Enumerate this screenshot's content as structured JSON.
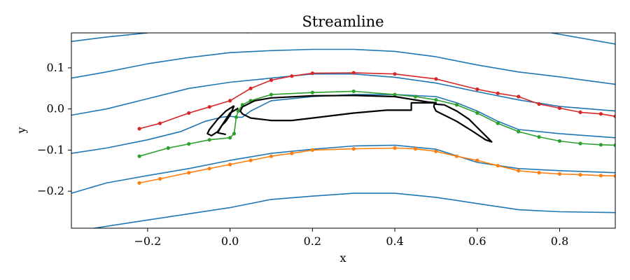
{
  "chart_data": {
    "type": "line",
    "title": "Streamline",
    "xlabel": "x",
    "ylabel": "y",
    "xlim": [
      -0.385,
      0.935
    ],
    "ylim": [
      -0.29,
      0.185
    ],
    "xticks": [
      -0.2,
      0.0,
      0.2,
      0.4,
      0.6,
      0.8
    ],
    "xtick_labels": [
      "−0.2",
      "0.0",
      "0.2",
      "0.4",
      "0.6",
      "0.8"
    ],
    "yticks": [
      -0.2,
      -0.1,
      0.0,
      0.1
    ],
    "ytick_labels": [
      "−0.2",
      "−0.1",
      "0.0",
      "0.1"
    ],
    "grid": false,
    "colors": {
      "streamline": "#1f77b4",
      "red": "#d62728",
      "green": "#2ca02c",
      "orange": "#ff7f0e",
      "body": "#000000"
    },
    "series": [
      {
        "color": "#1f77b4",
        "style": "line",
        "points": [
          [
            -0.385,
            0.164
          ],
          [
            -0.3,
            0.175
          ],
          [
            -0.2,
            0.185
          ]
        ]
      },
      {
        "color": "#1f77b4",
        "style": "line",
        "points": [
          [
            0.04,
            0.185
          ],
          [
            0.2,
            0.2
          ]
        ]
      },
      {
        "color": "#1f77b4",
        "style": "line",
        "points": [
          [
            0.78,
            0.185
          ],
          [
            0.935,
            0.158
          ]
        ]
      },
      {
        "color": "#1f77b4",
        "style": "line",
        "points": [
          [
            -0.385,
            0.075
          ],
          [
            -0.3,
            0.09
          ],
          [
            -0.2,
            0.11
          ],
          [
            -0.1,
            0.125
          ],
          [
            0.0,
            0.137
          ],
          [
            0.1,
            0.142
          ],
          [
            0.2,
            0.145
          ],
          [
            0.3,
            0.145
          ],
          [
            0.4,
            0.14
          ],
          [
            0.5,
            0.127
          ],
          [
            0.6,
            0.107
          ],
          [
            0.7,
            0.09
          ],
          [
            0.8,
            0.078
          ],
          [
            0.935,
            0.06
          ]
        ]
      },
      {
        "color": "#1f77b4",
        "style": "line",
        "points": [
          [
            -0.385,
            -0.015
          ],
          [
            -0.3,
            0.0
          ],
          [
            -0.2,
            0.025
          ],
          [
            -0.1,
            0.05
          ],
          [
            0.0,
            0.065
          ],
          [
            0.1,
            0.075
          ],
          [
            0.2,
            0.085
          ],
          [
            0.3,
            0.085
          ],
          [
            0.4,
            0.077
          ],
          [
            0.5,
            0.063
          ],
          [
            0.6,
            0.042
          ],
          [
            0.7,
            0.022
          ],
          [
            0.8,
            0.006
          ],
          [
            0.935,
            -0.005
          ]
        ]
      },
      {
        "color": "#1f77b4",
        "style": "line",
        "points": [
          [
            -0.385,
            -0.108
          ],
          [
            -0.3,
            -0.095
          ],
          [
            -0.2,
            -0.075
          ],
          [
            -0.12,
            -0.055
          ],
          [
            -0.06,
            -0.03
          ],
          [
            -0.02,
            -0.02
          ],
          [
            0.0,
            -0.018
          ],
          [
            0.02,
            -0.02
          ],
          [
            0.03,
            -0.02
          ],
          [
            0.05,
            -0.005
          ],
          [
            0.08,
            0.01
          ],
          [
            0.1,
            0.02
          ],
          [
            0.2,
            0.03
          ],
          [
            0.3,
            0.035
          ],
          [
            0.4,
            0.035
          ],
          [
            0.5,
            0.03
          ],
          [
            0.55,
            0.015
          ],
          [
            0.6,
            -0.005
          ],
          [
            0.65,
            -0.03
          ],
          [
            0.7,
            -0.05
          ],
          [
            0.8,
            -0.06
          ],
          [
            0.935,
            -0.07
          ]
        ]
      },
      {
        "color": "#1f77b4",
        "style": "line",
        "points": [
          [
            -0.385,
            -0.205
          ],
          [
            -0.3,
            -0.18
          ],
          [
            -0.2,
            -0.162
          ],
          [
            -0.1,
            -0.145
          ],
          [
            0.0,
            -0.125
          ],
          [
            0.1,
            -0.108
          ],
          [
            0.2,
            -0.098
          ],
          [
            0.3,
            -0.09
          ],
          [
            0.4,
            -0.088
          ],
          [
            0.5,
            -0.098
          ],
          [
            0.6,
            -0.13
          ],
          [
            0.7,
            -0.145
          ],
          [
            0.8,
            -0.15
          ],
          [
            0.935,
            -0.155
          ]
        ]
      },
      {
        "color": "#1f77b4",
        "style": "line",
        "points": [
          [
            -0.33,
            -0.29
          ],
          [
            -0.2,
            -0.27
          ],
          [
            -0.1,
            -0.255
          ],
          [
            0.0,
            -0.24
          ],
          [
            0.1,
            -0.22
          ],
          [
            0.2,
            -0.212
          ],
          [
            0.3,
            -0.205
          ],
          [
            0.4,
            -0.205
          ],
          [
            0.5,
            -0.215
          ],
          [
            0.6,
            -0.23
          ],
          [
            0.7,
            -0.245
          ],
          [
            0.8,
            -0.25
          ],
          [
            0.935,
            -0.252
          ]
        ]
      },
      {
        "color": "#d62728",
        "style": "line-markers",
        "points": [
          [
            -0.22,
            -0.048
          ],
          [
            -0.17,
            -0.035
          ],
          [
            -0.1,
            -0.01
          ],
          [
            -0.05,
            0.005
          ],
          [
            0.0,
            0.02
          ],
          [
            0.05,
            0.05
          ],
          [
            0.1,
            0.07
          ],
          [
            0.15,
            0.08
          ],
          [
            0.2,
            0.087
          ],
          [
            0.3,
            0.088
          ],
          [
            0.4,
            0.085
          ],
          [
            0.5,
            0.073
          ],
          [
            0.6,
            0.048
          ],
          [
            0.65,
            0.038
          ],
          [
            0.7,
            0.03
          ],
          [
            0.75,
            0.012
          ],
          [
            0.8,
            0.002
          ],
          [
            0.85,
            -0.008
          ],
          [
            0.9,
            -0.012
          ],
          [
            0.935,
            -0.018
          ]
        ]
      },
      {
        "color": "#2ca02c",
        "style": "line-markers",
        "points": [
          [
            -0.22,
            -0.115
          ],
          [
            -0.15,
            -0.095
          ],
          [
            -0.1,
            -0.085
          ],
          [
            -0.05,
            -0.075
          ],
          [
            0.0,
            -0.07
          ],
          [
            0.01,
            -0.06
          ],
          [
            0.015,
            -0.02
          ],
          [
            0.02,
            -0.005
          ],
          [
            0.03,
            0.01
          ],
          [
            0.05,
            0.02
          ],
          [
            0.1,
            0.035
          ],
          [
            0.2,
            0.04
          ],
          [
            0.3,
            0.043
          ],
          [
            0.4,
            0.035
          ],
          [
            0.45,
            0.03
          ],
          [
            0.5,
            0.022
          ],
          [
            0.55,
            0.01
          ],
          [
            0.6,
            -0.01
          ],
          [
            0.65,
            -0.035
          ],
          [
            0.7,
            -0.055
          ],
          [
            0.75,
            -0.068
          ],
          [
            0.8,
            -0.078
          ],
          [
            0.85,
            -0.084
          ],
          [
            0.9,
            -0.087
          ],
          [
            0.935,
            -0.088
          ]
        ]
      },
      {
        "color": "#ff7f0e",
        "style": "line-markers",
        "points": [
          [
            -0.22,
            -0.18
          ],
          [
            -0.17,
            -0.17
          ],
          [
            -0.1,
            -0.155
          ],
          [
            -0.05,
            -0.145
          ],
          [
            0.0,
            -0.135
          ],
          [
            0.05,
            -0.125
          ],
          [
            0.1,
            -0.115
          ],
          [
            0.15,
            -0.108
          ],
          [
            0.2,
            -0.1
          ],
          [
            0.3,
            -0.097
          ],
          [
            0.4,
            -0.095
          ],
          [
            0.45,
            -0.097
          ],
          [
            0.5,
            -0.103
          ],
          [
            0.55,
            -0.115
          ],
          [
            0.6,
            -0.125
          ],
          [
            0.65,
            -0.138
          ],
          [
            0.7,
            -0.15
          ],
          [
            0.75,
            -0.155
          ],
          [
            0.8,
            -0.158
          ],
          [
            0.85,
            -0.16
          ],
          [
            0.9,
            -0.162
          ],
          [
            0.935,
            -0.163
          ]
        ]
      },
      {
        "color": "#000000",
        "style": "body",
        "points": [
          [
            0.03,
            0.005
          ],
          [
            0.06,
            0.02
          ],
          [
            0.1,
            0.027
          ],
          [
            0.2,
            0.032
          ],
          [
            0.3,
            0.033
          ],
          [
            0.4,
            0.03
          ],
          [
            0.48,
            0.017
          ],
          [
            0.5,
            0.015
          ],
          [
            0.49,
            0.015
          ],
          [
            0.44,
            0.015
          ],
          [
            0.44,
            -0.003
          ],
          [
            0.38,
            -0.003
          ],
          [
            0.3,
            -0.01
          ],
          [
            0.2,
            -0.022
          ],
          [
            0.15,
            -0.028
          ],
          [
            0.1,
            -0.028
          ],
          [
            0.05,
            -0.022
          ],
          [
            0.03,
            -0.012
          ],
          [
            0.025,
            -0.005
          ],
          [
            0.03,
            0.005
          ]
        ]
      },
      {
        "color": "#000000",
        "style": "body",
        "points": [
          [
            0.01,
            0.008
          ],
          [
            -0.01,
            -0.005
          ],
          [
            -0.03,
            -0.025
          ],
          [
            -0.05,
            -0.05
          ],
          [
            -0.055,
            -0.06
          ],
          [
            -0.045,
            -0.065
          ],
          [
            -0.03,
            -0.055
          ],
          [
            -0.02,
            -0.04
          ],
          [
            -0.01,
            -0.03
          ],
          [
            0.0,
            -0.015
          ],
          [
            0.01,
            0.008
          ]
        ]
      },
      {
        "color": "#000000",
        "style": "body",
        "points": [
          [
            0.02,
            0.002
          ],
          [
            0.0,
            -0.01
          ],
          [
            -0.02,
            -0.04
          ],
          [
            -0.03,
            -0.058
          ],
          [
            -0.01,
            -0.062
          ]
        ]
      },
      {
        "color": "#000000",
        "style": "body",
        "points": [
          [
            0.495,
            0.012
          ],
          [
            0.52,
            0.01
          ],
          [
            0.55,
            -0.005
          ],
          [
            0.58,
            -0.025
          ],
          [
            0.6,
            -0.045
          ],
          [
            0.62,
            -0.065
          ],
          [
            0.635,
            -0.08
          ],
          [
            0.62,
            -0.075
          ],
          [
            0.59,
            -0.055
          ],
          [
            0.55,
            -0.03
          ],
          [
            0.52,
            -0.015
          ],
          [
            0.5,
            -0.005
          ],
          [
            0.495,
            0.005
          ],
          [
            0.495,
            0.012
          ]
        ]
      }
    ]
  }
}
